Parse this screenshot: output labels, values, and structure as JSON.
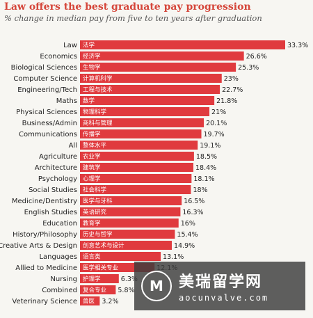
{
  "chart_data": {
    "type": "bar",
    "orientation": "horizontal",
    "title": "Law offers the best graduate pay progression",
    "subtitle": "% change in median pay from five to ten years after graduation",
    "xlabel": "",
    "ylabel": "",
    "xlim": [
      0,
      33.3
    ],
    "grid": false,
    "bar_color": "#e03a3e",
    "categories": [
      "Law",
      "Economics",
      "Biological Sciences",
      "Computer Science",
      "Engineering/Tech",
      "Maths",
      "Physical Sciences",
      "Business/Admin",
      "Communications",
      "All",
      "Agriculture",
      "Architecture",
      "Psychology",
      "Social Studies",
      "Medicine/Dentistry",
      "English Studies",
      "Education",
      "History/Philosophy",
      "Creative Arts & Design",
      "Languages",
      "Allied to Medicine",
      "Nursing",
      "Combined",
      "Veterinary Science"
    ],
    "categories_cn": [
      "法学",
      "经济学",
      "生物学",
      "计算机科学",
      "工程与技术",
      "数学",
      "物理科学",
      "商科与管理",
      "传播学",
      "整体水平",
      "农业学",
      "建筑学",
      "心理学",
      "社会科学",
      "医学与牙科",
      "英语研究",
      "教育学",
      "历史与哲学",
      "创意艺术与设计",
      "语言类",
      "医学相关专业",
      "护理学",
      "复合专业",
      "兽医"
    ],
    "values": [
      33.3,
      26.6,
      25.3,
      23,
      22.7,
      21.8,
      21,
      20.1,
      19.7,
      19.1,
      18.5,
      18.4,
      18.1,
      18,
      16.5,
      16.3,
      16,
      15.4,
      14.9,
      13.1,
      12.1,
      6.3,
      5.8,
      3.2
    ],
    "value_labels": [
      "33.3%",
      "26.6%",
      "25.3%",
      "23%",
      "22.7%",
      "21.8%",
      "21%",
      "20.1%",
      "19.7%",
      "19.1%",
      "18.5%",
      "18.4%",
      "18.1%",
      "18%",
      "16.5%",
      "16.3%",
      "16%",
      "15.4%",
      "14.9%",
      "13.1%",
      "12.1%",
      "6.3%",
      "5.8%",
      "3.2%"
    ]
  },
  "watermark": {
    "logo_letter": "M",
    "brand": "美瑞留学网",
    "url": "aocunvalve.com"
  }
}
